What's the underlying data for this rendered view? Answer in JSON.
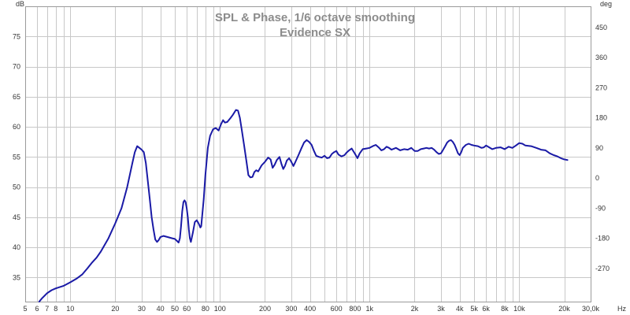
{
  "chart_data": {
    "type": "line",
    "title": "SPL & Phase, 1/6 octave smoothing",
    "subtitle": "Evidence SX",
    "x_scale": "log",
    "xlim": [
      5,
      30000
    ],
    "ylim": [
      31,
      80
    ],
    "y2lim": [
      -369,
      513
    ],
    "ylabel": "dB",
    "y2label": "deg",
    "xunit": "Hz",
    "grid": true,
    "colors": {
      "series": "#1a1aa6",
      "grid": "#c8c8c8",
      "frame": "#9a9a9a",
      "title": "#8c8c8c"
    },
    "x_ticks": [
      {
        "value": 5,
        "label": "5"
      },
      {
        "value": 6,
        "label": "6"
      },
      {
        "value": 7,
        "label": "7"
      },
      {
        "value": 8,
        "label": "8"
      },
      {
        "value": 10,
        "label": "10"
      },
      {
        "value": 20,
        "label": "20"
      },
      {
        "value": 30,
        "label": "30"
      },
      {
        "value": 40,
        "label": "40"
      },
      {
        "value": 50,
        "label": "50"
      },
      {
        "value": 60,
        "label": "60"
      },
      {
        "value": 80,
        "label": "80"
      },
      {
        "value": 100,
        "label": "100"
      },
      {
        "value": 200,
        "label": "200"
      },
      {
        "value": 300,
        "label": "300"
      },
      {
        "value": 400,
        "label": "400"
      },
      {
        "value": 600,
        "label": "600"
      },
      {
        "value": 800,
        "label": "800"
      },
      {
        "value": 1000,
        "label": "1k"
      },
      {
        "value": 2000,
        "label": "2k"
      },
      {
        "value": 3000,
        "label": "3k"
      },
      {
        "value": 4000,
        "label": "4k"
      },
      {
        "value": 5000,
        "label": "5k"
      },
      {
        "value": 6000,
        "label": "6k"
      },
      {
        "value": 8000,
        "label": "8k"
      },
      {
        "value": 10000,
        "label": "10k"
      },
      {
        "value": 20000,
        "label": "20k"
      },
      {
        "value": 30000,
        "label": "30,0k"
      }
    ],
    "x_minor_gridlines": [
      9,
      70,
      90,
      500,
      700,
      900,
      7000,
      9000
    ],
    "y_ticks": [
      35,
      40,
      45,
      50,
      55,
      60,
      65,
      70,
      75
    ],
    "y2_ticks": [
      -270,
      -180,
      -90,
      0,
      90,
      180,
      270,
      360,
      450
    ],
    "series": [
      {
        "points": [
          [
            6.2,
            31
          ],
          [
            6.5,
            31.6
          ],
          [
            7,
            32.4
          ],
          [
            7.5,
            32.9
          ],
          [
            8,
            33.2
          ],
          [
            9,
            33.6
          ],
          [
            10,
            34.2
          ],
          [
            11,
            34.8
          ],
          [
            12,
            35.5
          ],
          [
            13,
            36.5
          ],
          [
            14,
            37.5
          ],
          [
            15,
            38.3
          ],
          [
            16,
            39.3
          ],
          [
            18,
            41.5
          ],
          [
            20,
            44
          ],
          [
            22,
            46.5
          ],
          [
            24,
            50
          ],
          [
            25,
            52
          ],
          [
            26,
            54
          ],
          [
            27,
            55.8
          ],
          [
            28,
            56.8
          ],
          [
            29,
            56.5
          ],
          [
            30,
            56.2
          ],
          [
            31,
            55.8
          ],
          [
            32,
            54
          ],
          [
            33,
            51
          ],
          [
            34,
            48
          ],
          [
            35,
            45
          ],
          [
            36,
            43
          ],
          [
            37,
            41.3
          ],
          [
            38,
            40.9
          ],
          [
            39,
            41.2
          ],
          [
            40,
            41.7
          ],
          [
            42,
            41.9
          ],
          [
            45,
            41.7
          ],
          [
            48,
            41.5
          ],
          [
            50,
            41.4
          ],
          [
            52,
            41
          ],
          [
            53,
            40.8
          ],
          [
            54,
            41.5
          ],
          [
            55,
            43.5
          ],
          [
            56,
            46
          ],
          [
            57,
            47.5
          ],
          [
            58,
            47.8
          ],
          [
            59,
            47.5
          ],
          [
            60,
            46.5
          ],
          [
            61,
            45
          ],
          [
            62,
            43
          ],
          [
            63,
            41.5
          ],
          [
            64,
            40.9
          ],
          [
            66,
            42.5
          ],
          [
            68,
            44.2
          ],
          [
            70,
            44.5
          ],
          [
            72,
            44
          ],
          [
            74,
            43.3
          ],
          [
            75,
            43.5
          ],
          [
            78,
            48
          ],
          [
            80,
            52
          ],
          [
            83,
            56.5
          ],
          [
            86,
            58.5
          ],
          [
            90,
            59.6
          ],
          [
            94,
            59.8
          ],
          [
            98,
            59.4
          ],
          [
            102,
            60.5
          ],
          [
            105,
            61.1
          ],
          [
            108,
            60.7
          ],
          [
            112,
            60.8
          ],
          [
            118,
            61.5
          ],
          [
            122,
            62
          ],
          [
            128,
            62.8
          ],
          [
            132,
            62.7
          ],
          [
            136,
            61.5
          ],
          [
            140,
            59.5
          ],
          [
            145,
            57
          ],
          [
            150,
            54.5
          ],
          [
            155,
            52
          ],
          [
            160,
            51.6
          ],
          [
            165,
            51.7
          ],
          [
            170,
            52.5
          ],
          [
            175,
            52.8
          ],
          [
            180,
            52.6
          ],
          [
            190,
            53.6
          ],
          [
            200,
            54.2
          ],
          [
            210,
            54.9
          ],
          [
            218,
            54.6
          ],
          [
            225,
            53.2
          ],
          [
            232,
            53.7
          ],
          [
            240,
            54.5
          ],
          [
            250,
            55
          ],
          [
            258,
            53.8
          ],
          [
            265,
            53
          ],
          [
            272,
            53.5
          ],
          [
            280,
            54.4
          ],
          [
            290,
            54.8
          ],
          [
            300,
            54.2
          ],
          [
            310,
            53.5
          ],
          [
            320,
            54.2
          ],
          [
            335,
            55.3
          ],
          [
            350,
            56.4
          ],
          [
            365,
            57.4
          ],
          [
            380,
            57.8
          ],
          [
            395,
            57.5
          ],
          [
            410,
            57
          ],
          [
            425,
            56
          ],
          [
            440,
            55.2
          ],
          [
            460,
            55
          ],
          [
            480,
            54.9
          ],
          [
            500,
            55.2
          ],
          [
            520,
            54.8
          ],
          [
            540,
            54.9
          ],
          [
            560,
            55.5
          ],
          [
            580,
            55.8
          ],
          [
            600,
            56
          ],
          [
            620,
            55.4
          ],
          [
            650,
            55.1
          ],
          [
            680,
            55.3
          ],
          [
            700,
            55.7
          ],
          [
            730,
            56.1
          ],
          [
            760,
            56.4
          ],
          [
            800,
            55.5
          ],
          [
            830,
            54.8
          ],
          [
            860,
            55.6
          ],
          [
            900,
            56.3
          ],
          [
            950,
            56.4
          ],
          [
            1000,
            56.5
          ],
          [
            1050,
            56.8
          ],
          [
            1100,
            57
          ],
          [
            1150,
            56.6
          ],
          [
            1200,
            56.1
          ],
          [
            1250,
            56.3
          ],
          [
            1300,
            56.7
          ],
          [
            1350,
            56.5
          ],
          [
            1400,
            56.2
          ],
          [
            1500,
            56.5
          ],
          [
            1600,
            56.1
          ],
          [
            1700,
            56.3
          ],
          [
            1800,
            56.2
          ],
          [
            1900,
            56.5
          ],
          [
            2000,
            56
          ],
          [
            2100,
            56
          ],
          [
            2200,
            56.3
          ],
          [
            2300,
            56.4
          ],
          [
            2400,
            56.5
          ],
          [
            2500,
            56.4
          ],
          [
            2600,
            56.5
          ],
          [
            2700,
            56.2
          ],
          [
            2800,
            55.8
          ],
          [
            2900,
            55.5
          ],
          [
            3000,
            55.6
          ],
          [
            3100,
            56.2
          ],
          [
            3200,
            56.8
          ],
          [
            3300,
            57.4
          ],
          [
            3400,
            57.7
          ],
          [
            3500,
            57.8
          ],
          [
            3600,
            57.5
          ],
          [
            3700,
            57
          ],
          [
            3800,
            56.3
          ],
          [
            3900,
            55.6
          ],
          [
            4000,
            55.3
          ],
          [
            4100,
            55.8
          ],
          [
            4200,
            56.5
          ],
          [
            4400,
            57
          ],
          [
            4600,
            57.2
          ],
          [
            4800,
            57
          ],
          [
            5000,
            56.9
          ],
          [
            5300,
            56.8
          ],
          [
            5600,
            56.5
          ],
          [
            5800,
            56.6
          ],
          [
            6000,
            56.9
          ],
          [
            6300,
            56.6
          ],
          [
            6600,
            56.3
          ],
          [
            7000,
            56.5
          ],
          [
            7500,
            56.6
          ],
          [
            8000,
            56.3
          ],
          [
            8500,
            56.7
          ],
          [
            9000,
            56.5
          ],
          [
            9500,
            56.9
          ],
          [
            10000,
            57.3
          ],
          [
            10500,
            57.2
          ],
          [
            11000,
            56.9
          ],
          [
            12000,
            56.8
          ],
          [
            13000,
            56.5
          ],
          [
            14000,
            56.2
          ],
          [
            15000,
            56.1
          ],
          [
            16000,
            55.6
          ],
          [
            17000,
            55.3
          ],
          [
            18000,
            55.1
          ],
          [
            19000,
            54.8
          ],
          [
            20000,
            54.6
          ],
          [
            21000,
            54.5
          ]
        ]
      }
    ]
  }
}
